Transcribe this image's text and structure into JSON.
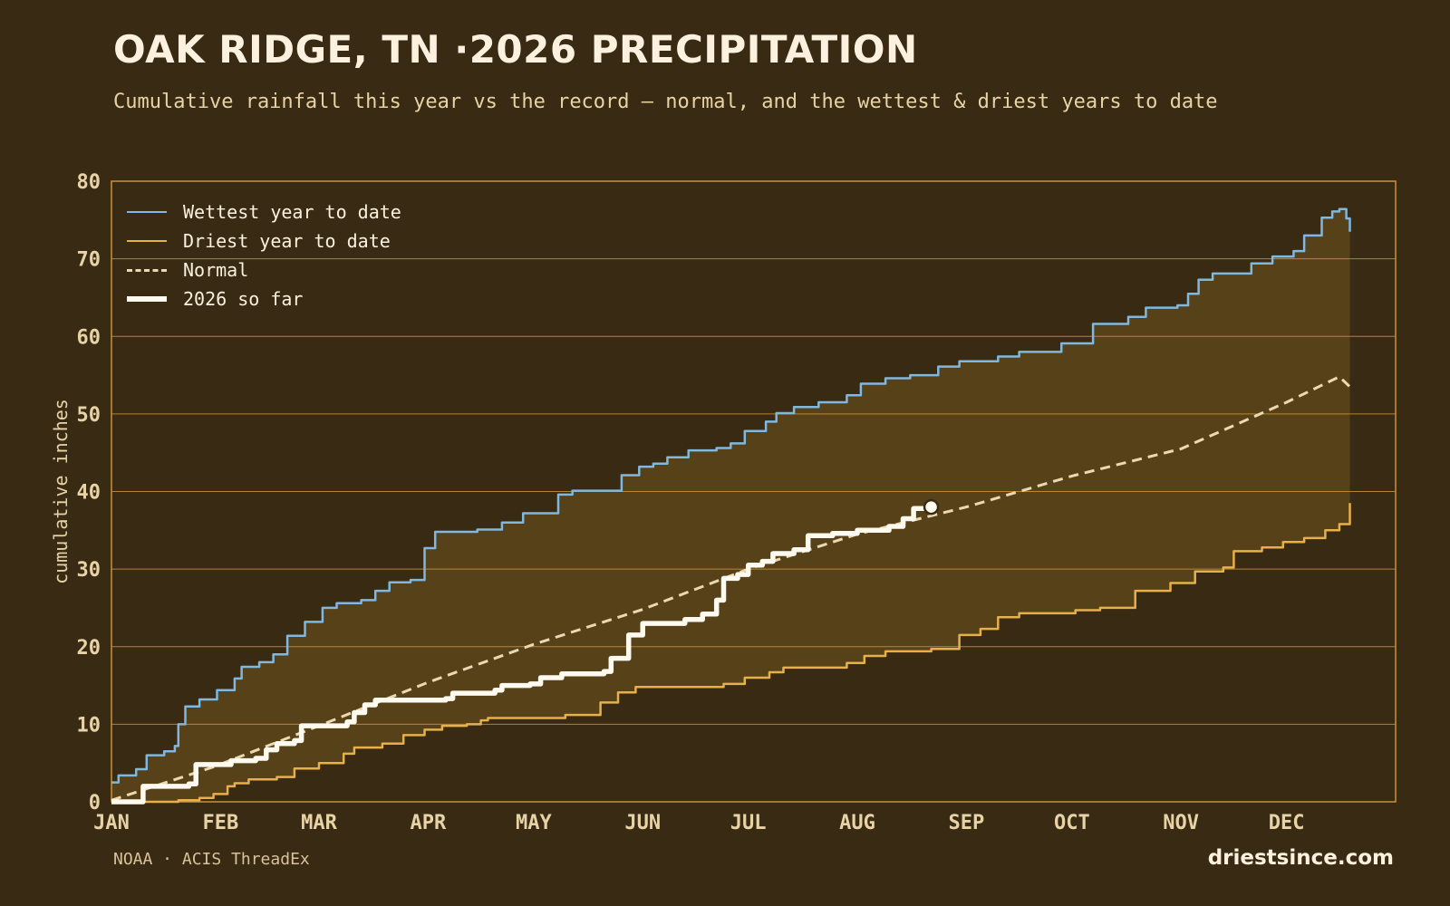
{
  "header": {
    "title": "OAK RIDGE, TN ·2026 PRECIPITATION",
    "subtitle": "Cumulative rainfall this year vs the record — normal, and the wettest & driest years to date"
  },
  "footer": {
    "source": "NOAA · ACIS ThreadEx",
    "brand": "driestsince.com"
  },
  "legend": [
    {
      "label": "Wettest year to date",
      "color": "#7fb8e0",
      "style": "solid"
    },
    {
      "label": "Driest year to date",
      "color": "#e6b04a",
      "style": "solid"
    },
    {
      "label": "Normal",
      "color": "#ead9b3",
      "style": "dashed"
    },
    {
      "label": "2026 so far",
      "color": "#fffaf0",
      "style": "thick"
    }
  ],
  "colors": {
    "background": "#382a13",
    "band_fill": "#574119",
    "grid": "#c9923a",
    "tick_text": "#e8d3a6",
    "wettest": "#7fb8e0",
    "driest": "#e6b04a",
    "normal": "#ead9b3",
    "current": "#fffaf0"
  },
  "chart_data": {
    "type": "line",
    "title": "OAK RIDGE, TN ·2026 PRECIPITATION",
    "xlabel": "",
    "ylabel": "cumulative inches",
    "xlim": [
      1,
      366
    ],
    "ylim": [
      0,
      80
    ],
    "grid": true,
    "legend_position": "top-left",
    "yticks": [
      0,
      10,
      20,
      30,
      40,
      50,
      60,
      70,
      80
    ],
    "xticks": [
      {
        "label": "JAN",
        "day": 1
      },
      {
        "label": "FEB",
        "day": 32
      },
      {
        "label": "MAR",
        "day": 60
      },
      {
        "label": "APR",
        "day": 91
      },
      {
        "label": "MAY",
        "day": 121
      },
      {
        "label": "JUN",
        "day": 152
      },
      {
        "label": "JUL",
        "day": 182
      },
      {
        "label": "AUG",
        "day": 213
      },
      {
        "label": "SEP",
        "day": 244
      },
      {
        "label": "OCT",
        "day": 274
      },
      {
        "label": "NOV",
        "day": 305
      },
      {
        "label": "DEC",
        "day": 335
      }
    ],
    "series": [
      {
        "name": "Wettest year to date",
        "points": [
          [
            1,
            2.5
          ],
          [
            3,
            3.4
          ],
          [
            8,
            4.2
          ],
          [
            11,
            6.0
          ],
          [
            16,
            6.5
          ],
          [
            19,
            7.2
          ],
          [
            20,
            10.0
          ],
          [
            22,
            12.3
          ],
          [
            26,
            13.2
          ],
          [
            31,
            14.4
          ],
          [
            36,
            15.9
          ],
          [
            38,
            17.4
          ],
          [
            43,
            18.0
          ],
          [
            47,
            19.0
          ],
          [
            51,
            21.4
          ],
          [
            56,
            23.2
          ],
          [
            61,
            25.0
          ],
          [
            65,
            25.6
          ],
          [
            72,
            26.0
          ],
          [
            76,
            27.2
          ],
          [
            80,
            28.3
          ],
          [
            86,
            28.6
          ],
          [
            90,
            32.7
          ],
          [
            93,
            34.8
          ],
          [
            105,
            35.1
          ],
          [
            112,
            36.0
          ],
          [
            118,
            37.2
          ],
          [
            128,
            39.6
          ],
          [
            132,
            40.1
          ],
          [
            140,
            40.1
          ],
          [
            146,
            42.1
          ],
          [
            151,
            43.2
          ],
          [
            155,
            43.6
          ],
          [
            159,
            44.4
          ],
          [
            165,
            45.3
          ],
          [
            173,
            45.6
          ],
          [
            177,
            46.2
          ],
          [
            181,
            47.8
          ],
          [
            187,
            49.0
          ],
          [
            190,
            50.1
          ],
          [
            195,
            50.9
          ],
          [
            202,
            51.5
          ],
          [
            210,
            52.4
          ],
          [
            214,
            53.9
          ],
          [
            221,
            54.6
          ],
          [
            228,
            55.0
          ],
          [
            236,
            56.1
          ],
          [
            242,
            56.8
          ],
          [
            253,
            57.4
          ],
          [
            259,
            58.0
          ],
          [
            271,
            59.1
          ],
          [
            280,
            61.6
          ],
          [
            290,
            62.5
          ],
          [
            295,
            63.7
          ],
          [
            304,
            64.0
          ],
          [
            307,
            65.5
          ],
          [
            310,
            67.3
          ],
          [
            314,
            68.1
          ],
          [
            325,
            69.4
          ],
          [
            331,
            70.3
          ],
          [
            337,
            71.0
          ],
          [
            340,
            73.0
          ],
          [
            345,
            75.3
          ],
          [
            348,
            76.1
          ],
          [
            350,
            76.4
          ],
          [
            352,
            75.2
          ],
          [
            353,
            73.5
          ]
        ]
      },
      {
        "name": "Driest year to date",
        "points": [
          [
            1,
            0
          ],
          [
            20,
            0.2
          ],
          [
            26,
            0.5
          ],
          [
            30,
            1.0
          ],
          [
            34,
            2.0
          ],
          [
            36,
            2.4
          ],
          [
            40,
            2.9
          ],
          [
            48,
            3.2
          ],
          [
            53,
            4.3
          ],
          [
            60,
            5.0
          ],
          [
            67,
            6.2
          ],
          [
            70,
            7.0
          ],
          [
            78,
            7.5
          ],
          [
            84,
            8.6
          ],
          [
            90,
            9.3
          ],
          [
            95,
            9.8
          ],
          [
            102,
            10.0
          ],
          [
            106,
            10.5
          ],
          [
            108,
            10.8
          ],
          [
            130,
            11.2
          ],
          [
            140,
            12.8
          ],
          [
            145,
            14.1
          ],
          [
            150,
            14.8
          ],
          [
            175,
            15.2
          ],
          [
            181,
            16.0
          ],
          [
            188,
            16.7
          ],
          [
            192,
            17.3
          ],
          [
            210,
            17.9
          ],
          [
            215,
            18.8
          ],
          [
            221,
            19.4
          ],
          [
            234,
            19.7
          ],
          [
            242,
            21.5
          ],
          [
            248,
            22.3
          ],
          [
            253,
            23.8
          ],
          [
            259,
            24.3
          ],
          [
            275,
            24.7
          ],
          [
            282,
            25.0
          ],
          [
            292,
            27.2
          ],
          [
            302,
            28.2
          ],
          [
            309,
            29.7
          ],
          [
            317,
            30.2
          ],
          [
            320,
            32.3
          ],
          [
            328,
            32.8
          ],
          [
            334,
            33.5
          ],
          [
            340,
            34.0
          ],
          [
            346,
            35.0
          ],
          [
            350,
            35.8
          ],
          [
            353,
            38.5
          ]
        ]
      },
      {
        "name": "Normal",
        "points": [
          [
            1,
            0.2
          ],
          [
            30,
            4.5
          ],
          [
            60,
            9.8
          ],
          [
            91,
            15.4
          ],
          [
            121,
            20.3
          ],
          [
            152,
            24.8
          ],
          [
            182,
            30.0
          ],
          [
            213,
            34.5
          ],
          [
            244,
            38.0
          ],
          [
            259,
            40.0
          ],
          [
            274,
            42.0
          ],
          [
            305,
            45.5
          ],
          [
            320,
            48.5
          ],
          [
            335,
            51.5
          ],
          [
            350,
            54.8
          ],
          [
            353,
            53.5
          ]
        ]
      },
      {
        "name": "2026 so far",
        "points": [
          [
            1,
            0
          ],
          [
            8,
            0
          ],
          [
            10,
            2.0
          ],
          [
            23,
            2.3
          ],
          [
            25,
            4.8
          ],
          [
            35,
            5.3
          ],
          [
            42,
            5.6
          ],
          [
            45,
            6.7
          ],
          [
            48,
            7.5
          ],
          [
            53,
            7.9
          ],
          [
            55,
            9.8
          ],
          [
            68,
            10.3
          ],
          [
            70,
            11.5
          ],
          [
            73,
            12.5
          ],
          [
            76,
            13.1
          ],
          [
            96,
            13.3
          ],
          [
            98,
            14.0
          ],
          [
            110,
            14.4
          ],
          [
            112,
            15.0
          ],
          [
            120,
            15.2
          ],
          [
            123,
            16.0
          ],
          [
            129,
            16.5
          ],
          [
            141,
            16.8
          ],
          [
            143,
            18.5
          ],
          [
            148,
            21.5
          ],
          [
            152,
            23.0
          ],
          [
            164,
            23.5
          ],
          [
            169,
            24.2
          ],
          [
            173,
            26.0
          ],
          [
            175,
            28.8
          ],
          [
            179,
            29.3
          ],
          [
            182,
            30.5
          ],
          [
            186,
            31.0
          ],
          [
            189,
            32.0
          ],
          [
            195,
            32.5
          ],
          [
            199,
            34.3
          ],
          [
            206,
            34.6
          ],
          [
            213,
            35.0
          ],
          [
            222,
            35.5
          ],
          [
            226,
            36.5
          ],
          [
            229,
            37.8
          ],
          [
            234,
            38.0
          ]
        ]
      }
    ],
    "current_marker": {
      "day": 234,
      "value": 38.0
    }
  }
}
